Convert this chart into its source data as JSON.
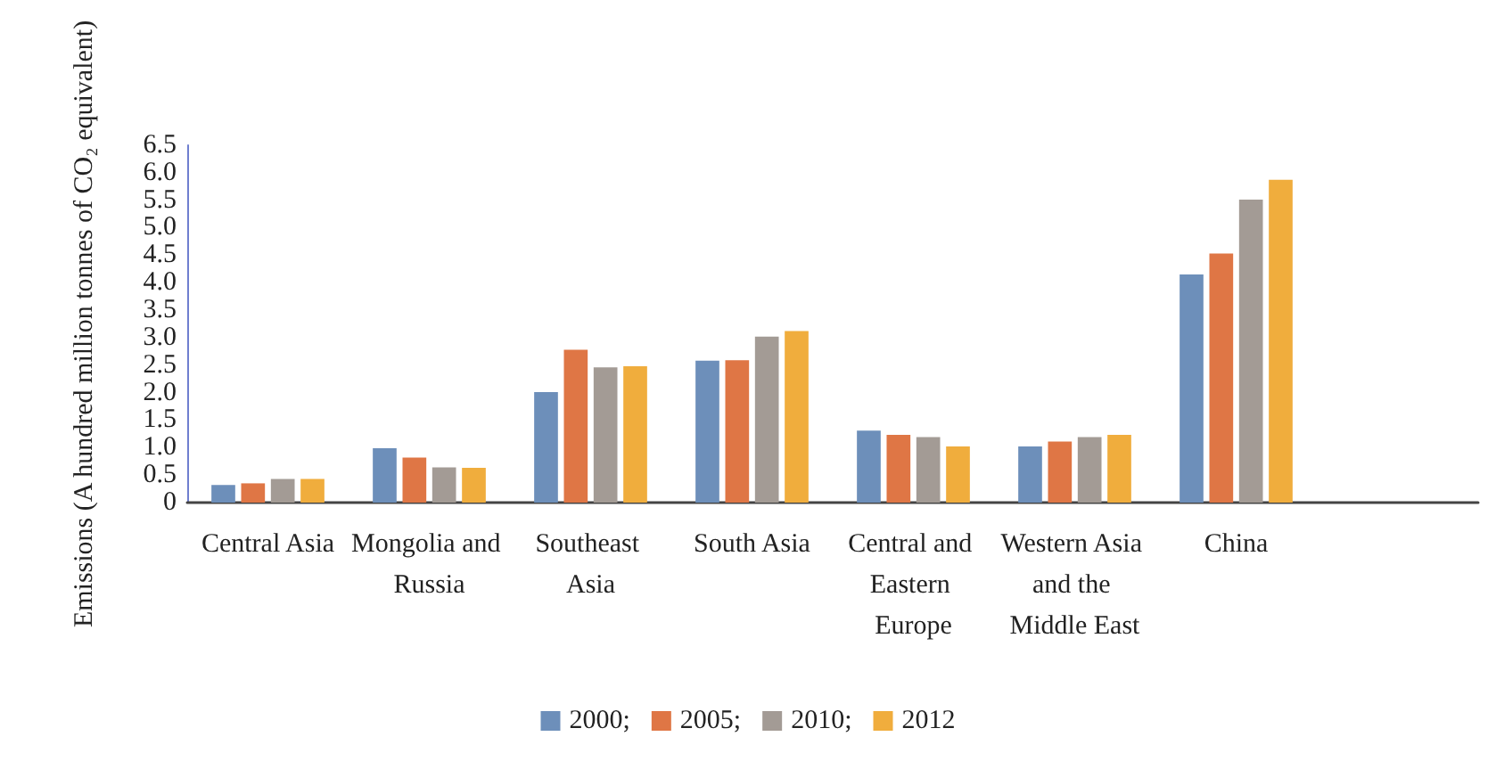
{
  "chart_data": {
    "type": "bar",
    "ylabel": "Emissions (A hundred million tonnes of CO₂ equivalent)",
    "categories": [
      "Central Asia",
      "Mongolia and Russia",
      "Southeast Asia",
      "South Asia",
      "Central and Eastern Europe",
      "Western Asia and the Middle East",
      "China",
      null
    ],
    "series": [
      {
        "name": "2000;",
        "color": "#6d8fba",
        "values": [
          0.32,
          0.99,
          2.01,
          2.58,
          1.31,
          1.02,
          4.15,
          null
        ]
      },
      {
        "name": "2005;",
        "color": "#df7645",
        "values": [
          0.35,
          0.82,
          2.78,
          2.59,
          1.23,
          1.11,
          4.53,
          null
        ]
      },
      {
        "name": "2010;",
        "color": "#a39b95",
        "values": [
          0.43,
          0.64,
          2.46,
          3.02,
          1.19,
          1.19,
          5.51,
          null
        ]
      },
      {
        "name": "2012",
        "color": "#f0ad3d",
        "values": [
          0.43,
          0.63,
          2.48,
          3.12,
          1.02,
          1.23,
          5.87,
          null
        ]
      }
    ],
    "ylim": [
      0,
      6.5
    ],
    "yticks": [
      {
        "value": 0,
        "label": "0"
      },
      {
        "value": 0.5,
        "label": "0.5"
      },
      {
        "value": 1,
        "label": "1.0"
      },
      {
        "value": 1.5,
        "label": "1.5"
      },
      {
        "value": 2,
        "label": "2.0"
      },
      {
        "value": 2.5,
        "label": "2.5"
      },
      {
        "value": 3,
        "label": "3.0"
      },
      {
        "value": 3.5,
        "label": "3.5"
      },
      {
        "value": 4,
        "label": "4.0"
      },
      {
        "value": 4.5,
        "label": "4.5"
      },
      {
        "value": 5,
        "label": "5.0"
      },
      {
        "value": 5.5,
        "label": "5.5"
      },
      {
        "value": 6,
        "label": "6.0"
      },
      {
        "value": 6.5,
        "label": "6.5"
      }
    ],
    "grid": false,
    "legend": "bottom"
  }
}
